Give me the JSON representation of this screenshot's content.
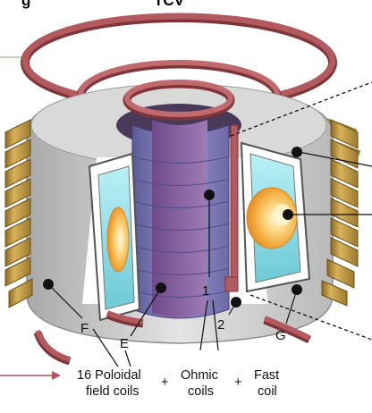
{
  "panel_letter": "g",
  "machine_name": "TCV",
  "markers": {
    "F": "F",
    "E": "E",
    "one": "1",
    "two": "2",
    "G": "G"
  },
  "legend": {
    "poloidal_line1": "16 Poloidal",
    "poloidal_line2": "field coils",
    "ohmic_line1": "Ohmic",
    "ohmic_line2": "coils",
    "fast_line1": "Fast",
    "fast_line2": "coil",
    "plus": "+"
  },
  "colors": {
    "outer_coil": "#c9a04a",
    "outer_coil_dark": "#8a6a24",
    "top_coil": "#b35a5e",
    "top_coil_dark": "#7e3438",
    "vessel": "#cfcfcf",
    "central_column": "#7f7fb8",
    "plasma_core": "#f6b545",
    "plasma_window": "#9fe3ee",
    "arrow": "#b5545a"
  }
}
